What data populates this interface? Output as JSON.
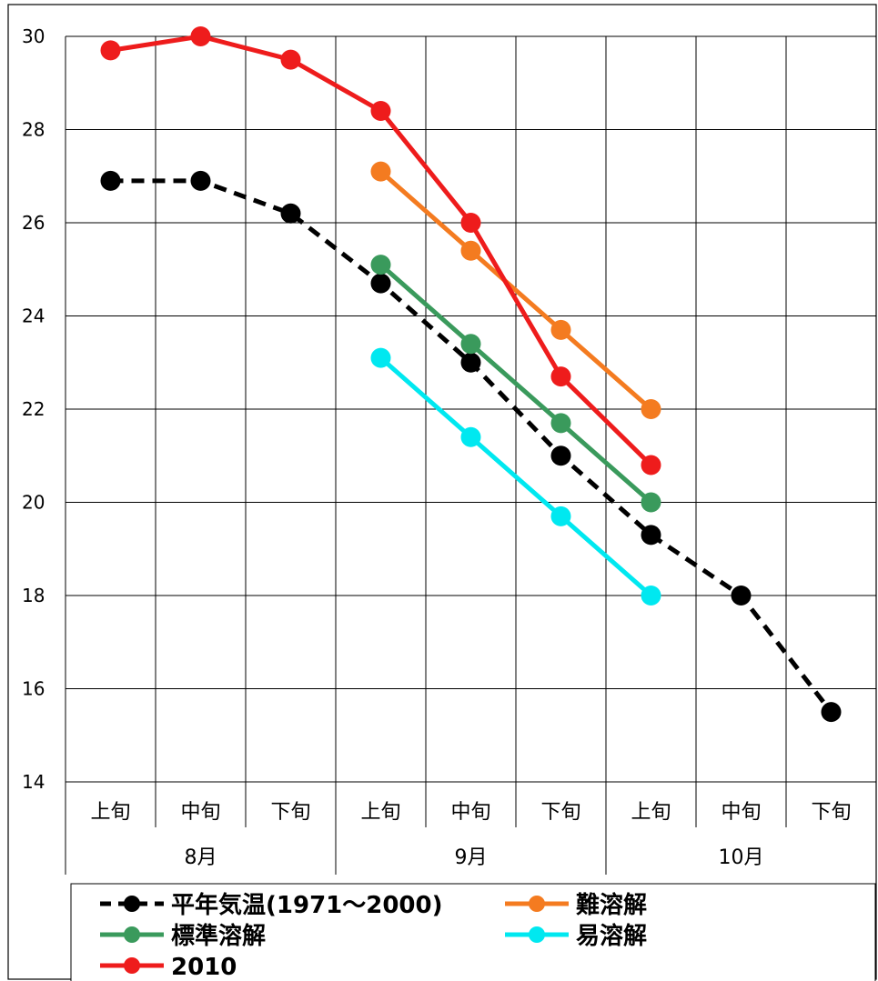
{
  "chart_data": {
    "type": "line",
    "title": "",
    "xlabel": "",
    "ylabel": "",
    "ylim": [
      14,
      30
    ],
    "yticks": [
      "14",
      "16",
      "18",
      "20",
      "22",
      "24",
      "26",
      "28",
      "30"
    ],
    "grid": true,
    "legend_position": "bottom",
    "categories": [
      "上旬",
      "中旬",
      "下旬",
      "上旬",
      "中旬",
      "下旬",
      "上旬",
      "中旬",
      "下旬"
    ],
    "months": [
      {
        "label": "8月",
        "start": 0,
        "end": 3
      },
      {
        "label": "9月",
        "start": 3,
        "end": 6
      },
      {
        "label": "10月",
        "start": 6,
        "end": 9
      }
    ],
    "series": [
      {
        "name": "平年気温(1971～2000)",
        "color": "#000000",
        "dashed": true,
        "values": [
          26.9,
          26.9,
          26.2,
          24.7,
          23.0,
          21.0,
          19.3,
          18.0,
          15.5
        ]
      },
      {
        "name": "難溶解",
        "color": "#f47b20",
        "dashed": false,
        "values": [
          null,
          null,
          null,
          27.1,
          25.4,
          23.7,
          22.0,
          null,
          null
        ]
      },
      {
        "name": "標準溶解",
        "color": "#3a9a5c",
        "dashed": false,
        "values": [
          null,
          null,
          null,
          25.1,
          23.4,
          21.7,
          20.0,
          null,
          null
        ]
      },
      {
        "name": "易溶解",
        "color": "#00e8f0",
        "dashed": false,
        "values": [
          null,
          null,
          null,
          23.1,
          21.4,
          19.7,
          18.0,
          null,
          null
        ]
      },
      {
        "name": "2010",
        "color": "#ee1c1c",
        "dashed": false,
        "values": [
          29.7,
          30.0,
          29.5,
          28.4,
          26.0,
          22.7,
          20.8,
          null,
          null
        ]
      }
    ]
  }
}
